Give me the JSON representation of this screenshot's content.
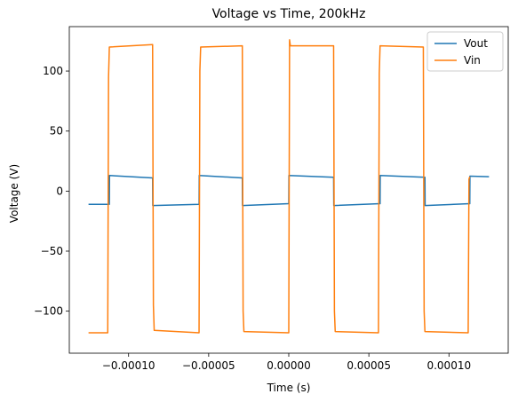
{
  "chart_data": {
    "type": "line",
    "title": "Voltage vs Time, 200kHz",
    "xlabel": "Time (s)",
    "ylabel": "Voltage (V)",
    "xlim": [
      -0.000137,
      0.000137
    ],
    "ylim": [
      -135,
      137
    ],
    "xticks": [
      -0.0001,
      -5e-05,
      0,
      5e-05,
      0.0001
    ],
    "xtick_labels": [
      "−0.00010",
      "−0.00005",
      "0.00000",
      "0.00005",
      "0.00010"
    ],
    "yticks": [
      -100,
      -50,
      0,
      50,
      100
    ],
    "ytick_labels": [
      "−100",
      "−50",
      "0",
      "50",
      "100"
    ],
    "grid": false,
    "legend_position": "top-right",
    "series": [
      {
        "name": "Vout",
        "color": "#1f77b4",
        "x": [
          -0.000125,
          -0.000112,
          -0.0001119,
          -8.5e-05,
          -8.49e-05,
          -5.6e-05,
          -5.59e-05,
          -2.9e-05,
          -2.89e-05,
          0.0,
          1e-07,
          2.8e-05,
          2.81e-05,
          5.7e-05,
          5.71e-05,
          8.5e-05,
          8.51e-05,
          0.000113,
          0.0001131,
          0.000125
        ],
        "y": [
          -11,
          -11,
          13,
          11,
          -12,
          -11,
          13,
          11,
          -12,
          -10.5,
          13,
          11.5,
          -12,
          -10.5,
          13,
          11.5,
          -12,
          -10.5,
          12.5,
          12
        ]
      },
      {
        "name": "Vin",
        "color": "#ff7f0e",
        "x": [
          -0.000125,
          -0.000113,
          -0.0001125,
          -0.000112,
          -8.5e-05,
          -8.45e-05,
          -8.4e-05,
          -5.6e-05,
          -5.55e-05,
          -5.5e-05,
          -2.9e-05,
          -2.85e-05,
          -2.8e-05,
          0.0,
          5e-07,
          1e-06,
          2.8e-05,
          2.85e-05,
          2.9e-05,
          5.6e-05,
          5.65e-05,
          5.7e-05,
          8.4e-05,
          8.45e-05,
          8.5e-05,
          0.000112,
          0.0001125,
          0.000113
        ],
        "y": [
          -118,
          -118,
          95,
          120,
          122,
          -95,
          -116,
          -118,
          100,
          120,
          121,
          -100,
          -117,
          -118,
          126,
          121,
          121,
          -100,
          -117,
          -118,
          98,
          121,
          120,
          -100,
          -117,
          -118,
          10,
          12
        ]
      }
    ]
  }
}
